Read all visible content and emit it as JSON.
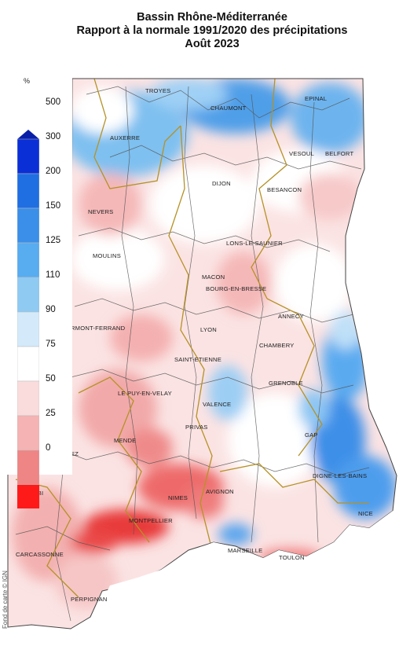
{
  "title": {
    "line1": "Bassin Rhône-Méditerranée",
    "line2": "Rapport à la normale 1991/2020 des précipitations",
    "line3": "Août 2023"
  },
  "legend": {
    "unit": "%",
    "classes": [
      {
        "label": "500",
        "color": "#0b2fd6"
      },
      {
        "label": "300",
        "color": "#1f6fe2"
      },
      {
        "label": "200",
        "color": "#3b8fe8"
      },
      {
        "label": "150",
        "color": "#58acf0"
      },
      {
        "label": "125",
        "color": "#8fcaf3"
      },
      {
        "label": "110",
        "color": "#d4eafa"
      },
      {
        "label": "90",
        "color": "#ffffff"
      },
      {
        "label": "75",
        "color": "#fadcdc"
      },
      {
        "label": "50",
        "color": "#f5b3b3"
      },
      {
        "label": "25",
        "color": "#ef8585"
      },
      {
        "label": "0",
        "color": "#e83232"
      }
    ],
    "bottom_color": "#ff1a1a"
  },
  "cities": [
    {
      "name": "TROYES"
    },
    {
      "name": "CHAUMONT"
    },
    {
      "name": "EPINAL"
    },
    {
      "name": "AUXERRE"
    },
    {
      "name": "VESOUL"
    },
    {
      "name": "BELFORT"
    },
    {
      "name": "DIJON"
    },
    {
      "name": "BESANCON"
    },
    {
      "name": "NEVERS"
    },
    {
      "name": "LONS-LE-SAUNIER"
    },
    {
      "name": "MOULINS"
    },
    {
      "name": "MACON"
    },
    {
      "name": "BOURG-EN-BRESSE"
    },
    {
      "name": "ANNECY"
    },
    {
      "name": "RMONT-FERRAND"
    },
    {
      "name": "LYON"
    },
    {
      "name": "CHAMBERY"
    },
    {
      "name": "SAINT-ETIENNE"
    },
    {
      "name": "GRENOBLE"
    },
    {
      "name": "LE PUY-EN-VELAY"
    },
    {
      "name": "VALENCE"
    },
    {
      "name": "PRIVAS"
    },
    {
      "name": "GAP"
    },
    {
      "name": "MENDE"
    },
    {
      "name": "EZ"
    },
    {
      "name": "DIGNE-LES-BAINS"
    },
    {
      "name": "AVIGNON"
    },
    {
      "name": "NIMES"
    },
    {
      "name": "ALBI"
    },
    {
      "name": "MONTPELLIER"
    },
    {
      "name": "NICE"
    },
    {
      "name": "CARCASSONNE"
    },
    {
      "name": "MARSEILLE"
    },
    {
      "name": "TOULON"
    },
    {
      "name": "PERPIGNAN"
    }
  ],
  "copyright": "Fond de carte © IGN"
}
